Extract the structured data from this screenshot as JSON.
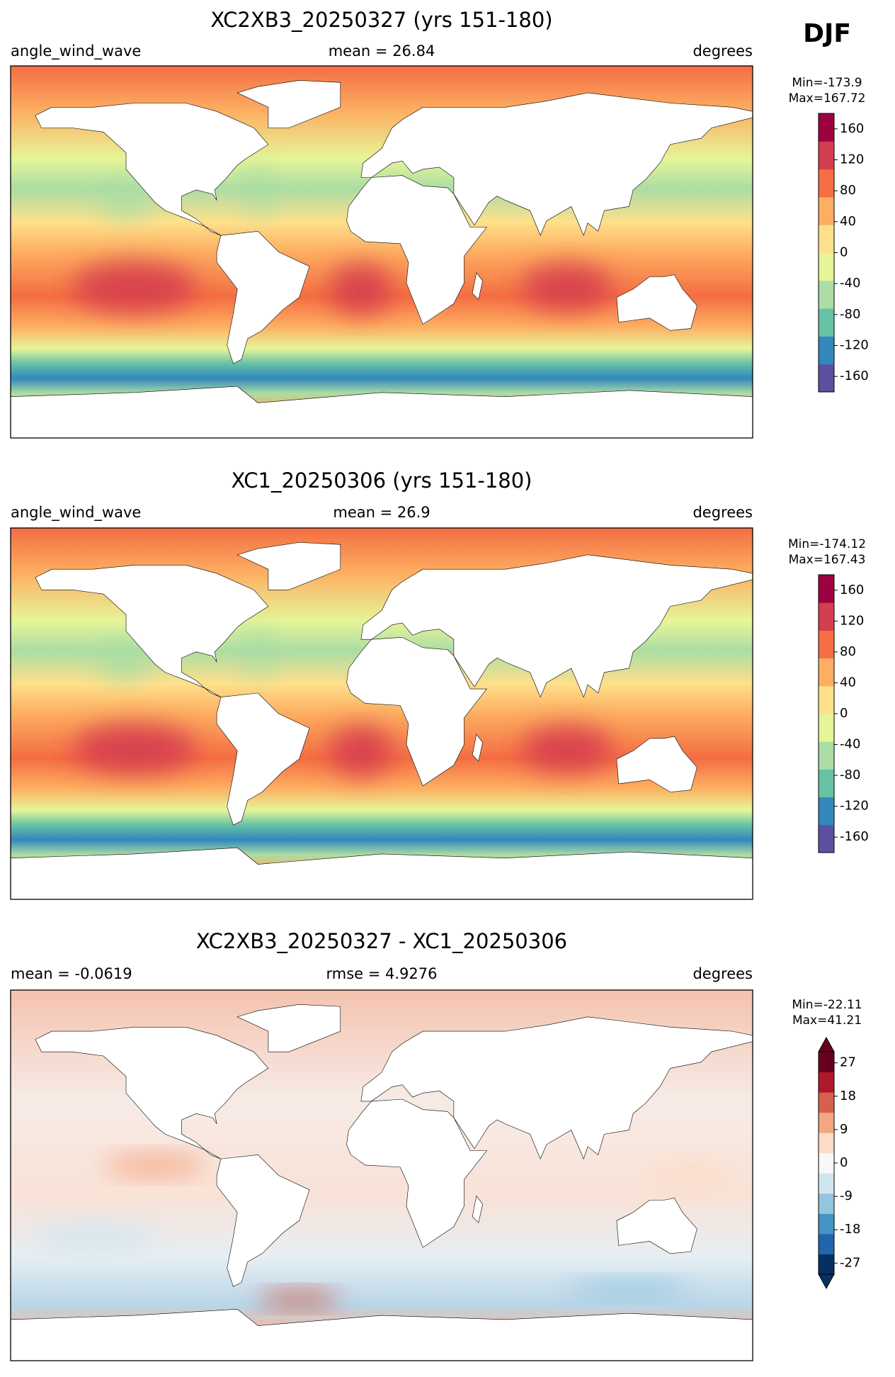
{
  "season": "DJF",
  "chart_data": [
    {
      "type": "map",
      "title": "XC2XB3_20250327 (yrs 151-180)",
      "left_label": "angle_wind_wave",
      "center_label": "mean = 26.84",
      "right_label": "degrees",
      "min_max": [
        "Min=-173.9",
        "Max=167.72"
      ],
      "colorbar": {
        "lim": [
          -180,
          180
        ],
        "ticks": [
          160,
          120,
          80,
          40,
          0,
          -40,
          -80,
          -120,
          -160
        ],
        "extend": false,
        "colors": [
          "#5e4fa2",
          "#3288bd",
          "#66c2a5",
          "#abdda4",
          "#e6f598",
          "#fee08b",
          "#fdae61",
          "#f46d43",
          "#d53e4f",
          "#9e0142"
        ]
      }
    },
    {
      "type": "map",
      "title": "XC1_20250306 (yrs 151-180)",
      "left_label": "angle_wind_wave",
      "center_label": "mean = 26.9",
      "right_label": "degrees",
      "min_max": [
        "Min=-174.12",
        "Max=167.43"
      ],
      "colorbar": {
        "lim": [
          -180,
          180
        ],
        "ticks": [
          160,
          120,
          80,
          40,
          0,
          -40,
          -80,
          -120,
          -160
        ],
        "extend": false,
        "colors": [
          "#5e4fa2",
          "#3288bd",
          "#66c2a5",
          "#abdda4",
          "#e6f598",
          "#fee08b",
          "#fdae61",
          "#f46d43",
          "#d53e4f",
          "#9e0142"
        ]
      }
    },
    {
      "type": "map",
      "title": "XC2XB3_20250327 - XC1_20250306",
      "left_label": "mean = -0.0619",
      "center_label": "rmse = 4.9276",
      "right_label": "degrees",
      "min_max": [
        "Min=-22.11",
        "Max=41.21"
      ],
      "colorbar": {
        "lim": [
          -30,
          30
        ],
        "ticks": [
          27,
          18,
          9,
          0,
          -9,
          -18,
          -27
        ],
        "extend": true,
        "colors": [
          "#053061",
          "#2166ac",
          "#4393c3",
          "#92c5de",
          "#d1e5f0",
          "#f7f7f7",
          "#fddbc7",
          "#f4a582",
          "#d6604d",
          "#b2182b",
          "#67001f"
        ]
      }
    }
  ]
}
